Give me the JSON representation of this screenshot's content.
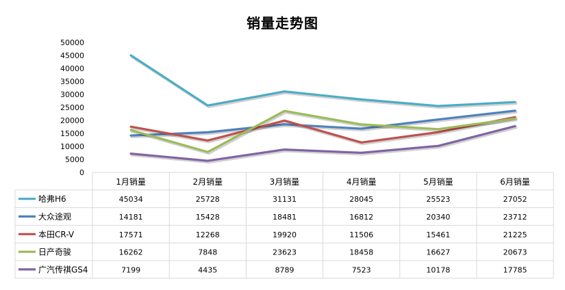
{
  "chart_data": {
    "type": "line",
    "title": "销量走势图",
    "categories": [
      "1月销量",
      "2月销量",
      "3月销量",
      "4月销量",
      "5月销量",
      "6月销量"
    ],
    "ylim": [
      0,
      50000
    ],
    "yticks": [
      "0",
      "5000",
      "10000",
      "15000",
      "20000",
      "25000",
      "30000",
      "35000",
      "40000",
      "45000",
      "50000"
    ],
    "grid": false,
    "legend": "data-table",
    "series": [
      {
        "name": "哈弗H6",
        "color": "#4bacc6",
        "values": [
          45034,
          25728,
          31131,
          28045,
          25523,
          27052
        ]
      },
      {
        "name": "大众途观",
        "color": "#4f81bd",
        "values": [
          14181,
          15428,
          18481,
          16812,
          20340,
          23712
        ]
      },
      {
        "name": "本田CR-V",
        "color": "#c0504d",
        "values": [
          17571,
          12268,
          19920,
          11506,
          15461,
          21225
        ]
      },
      {
        "name": "日产奇骏",
        "color": "#9bbb59",
        "values": [
          16262,
          7848,
          23623,
          18458,
          16627,
          20673
        ]
      },
      {
        "name": "广汽传祺GS4",
        "color": "#8064a2",
        "values": [
          7199,
          4435,
          8789,
          7523,
          10178,
          17785
        ]
      }
    ]
  }
}
